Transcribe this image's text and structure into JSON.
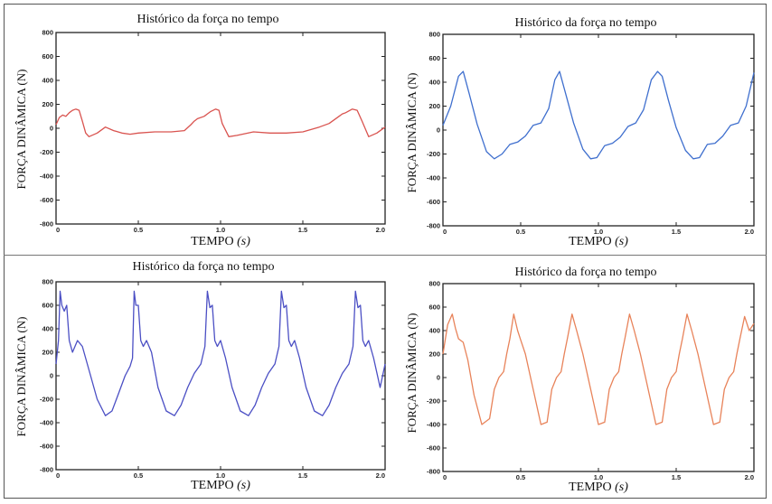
{
  "figure": {
    "panel_title": "Histórico da força no tempo",
    "xlabel_main": "TEMPO",
    "xlabel_unit": "(s)",
    "ylabel": "FORÇA DINÂMICA (N)"
  },
  "chart_data": [
    {
      "type": "line",
      "title": "Histórico da força no tempo",
      "xlabel": "TEMPO (s)",
      "ylabel": "FORÇA DINÂMICA (N)",
      "xlim": [
        0,
        2.0
      ],
      "ylim": [
        -800,
        800
      ],
      "x_ticks": [
        "0",
        "0.5",
        "1.0",
        "1.5",
        "2.0"
      ],
      "y_ticks": [
        "800",
        "600",
        "400",
        "200",
        "0",
        "-200",
        "-400",
        "-600",
        "-800"
      ],
      "grid": false,
      "color": "#d9534f",
      "series": [
        {
          "x": [
            0,
            0.02,
            0.04,
            0.06,
            0.08,
            0.1,
            0.12,
            0.14,
            0.16,
            0.18,
            0.2,
            0.25,
            0.3,
            0.35,
            0.4,
            0.45,
            0.5,
            0.6,
            0.7,
            0.78,
            0.82,
            0.84,
            0.86,
            0.9,
            0.94,
            0.97,
            0.99,
            1.01,
            1.05,
            1.1,
            1.2,
            1.3,
            1.4,
            1.5,
            1.6,
            1.66,
            1.72,
            1.74,
            1.76,
            1.8,
            1.83,
            1.86,
            1.9,
            1.95,
            2.0
          ],
          "y": [
            30,
            90,
            110,
            100,
            130,
            150,
            160,
            150,
            60,
            -40,
            -70,
            -40,
            10,
            -20,
            -40,
            -50,
            -40,
            -30,
            -30,
            -20,
            30,
            60,
            80,
            100,
            140,
            160,
            150,
            40,
            -70,
            -60,
            -30,
            -40,
            -40,
            -30,
            10,
            40,
            100,
            120,
            130,
            160,
            150,
            60,
            -70,
            -40,
            10
          ]
        }
      ]
    },
    {
      "type": "line",
      "title": "Histórico da força no tempo",
      "xlabel": "TEMPO (s)",
      "ylabel": "FORÇA DINÂMICA (N)",
      "xlim": [
        0,
        2.0
      ],
      "ylim": [
        -800,
        800
      ],
      "x_ticks": [
        "0",
        "0.5",
        "1.0",
        "1.5",
        "2.0"
      ],
      "y_ticks": [
        "800",
        "600",
        "400",
        "200",
        "0",
        "-200",
        "-400",
        "-600",
        "-800"
      ],
      "grid": false,
      "color": "#3f6fce",
      "series": [
        {
          "x": [
            0,
            0.05,
            0.1,
            0.13,
            0.17,
            0.22,
            0.28,
            0.33,
            0.38,
            0.43,
            0.48,
            0.53,
            0.58,
            0.63,
            0.68,
            0.72,
            0.75,
            0.79,
            0.84,
            0.9,
            0.95,
            0.99,
            1.04,
            1.09,
            1.14,
            1.19,
            1.24,
            1.29,
            1.34,
            1.38,
            1.41,
            1.45,
            1.5,
            1.56,
            1.61,
            1.65,
            1.7,
            1.75,
            1.8,
            1.85,
            1.9,
            1.95,
            2.0
          ],
          "y": [
            40,
            200,
            450,
            490,
            300,
            50,
            -180,
            -240,
            -200,
            -120,
            -100,
            -50,
            40,
            60,
            180,
            420,
            490,
            300,
            60,
            -160,
            -240,
            -230,
            -130,
            -110,
            -60,
            30,
            60,
            170,
            420,
            490,
            450,
            250,
            20,
            -170,
            -240,
            -230,
            -120,
            -110,
            -50,
            40,
            60,
            200,
            480
          ]
        }
      ]
    },
    {
      "type": "line",
      "title": "Histórico da força no tempo",
      "xlabel": "TEMPO (s)",
      "ylabel": "FORÇA DINÂMICA (N)",
      "xlim": [
        0,
        2.0
      ],
      "ylim": [
        -800,
        800
      ],
      "x_ticks": [
        "0",
        "0.5",
        "1.0",
        "1.5",
        "2.0"
      ],
      "y_ticks": [
        "800",
        "600",
        "400",
        "200",
        "0",
        "-200",
        "-400",
        "-600",
        "-800"
      ],
      "grid": false,
      "color": "#4b4fc4",
      "series": [
        {
          "x": [
            0,
            0.015,
            0.025,
            0.035,
            0.05,
            0.065,
            0.08,
            0.1,
            0.13,
            0.16,
            0.2,
            0.25,
            0.3,
            0.34,
            0.38,
            0.42,
            0.45,
            0.465,
            0.475,
            0.485,
            0.5,
            0.515,
            0.53,
            0.55,
            0.58,
            0.62,
            0.67,
            0.72,
            0.76,
            0.8,
            0.84,
            0.88,
            0.905,
            0.92,
            0.935,
            0.95,
            0.965,
            0.98,
            1.0,
            1.03,
            1.07,
            1.12,
            1.17,
            1.21,
            1.25,
            1.29,
            1.33,
            1.355,
            1.37,
            1.385,
            1.4,
            1.415,
            1.43,
            1.45,
            1.48,
            1.52,
            1.57,
            1.62,
            1.66,
            1.7,
            1.74,
            1.78,
            1.805,
            1.82,
            1.835,
            1.85,
            1.865,
            1.88,
            1.9,
            1.93,
            1.97,
            2.0
          ],
          "y": [
            100,
            300,
            720,
            600,
            550,
            600,
            300,
            200,
            300,
            250,
            50,
            -200,
            -340,
            -300,
            -150,
            0,
            80,
            150,
            720,
            600,
            600,
            300,
            250,
            300,
            200,
            -100,
            -300,
            -340,
            -250,
            -100,
            20,
            100,
            250,
            720,
            580,
            600,
            300,
            250,
            300,
            150,
            -100,
            -300,
            -340,
            -250,
            -100,
            20,
            100,
            250,
            720,
            580,
            600,
            300,
            250,
            300,
            150,
            -100,
            -300,
            -340,
            -250,
            -100,
            20,
            100,
            250,
            720,
            580,
            600,
            300,
            250,
            300,
            150,
            -100,
            100
          ]
        }
      ]
    },
    {
      "type": "line",
      "title": "Histórico da força no tempo",
      "xlabel": "TEMPO (s)",
      "ylabel": "FORÇA DINÂMICA (N)",
      "xlim": [
        0,
        2.0
      ],
      "ylim": [
        -800,
        800
      ],
      "x_ticks": [
        "0",
        "0.5",
        "1.0",
        "1.5",
        "2.0"
      ],
      "y_ticks": [
        "800",
        "600",
        "400",
        "200",
        "0",
        "-200",
        "-400",
        "-600",
        "-800"
      ],
      "grid": false,
      "color": "#e8835a",
      "series": [
        {
          "x": [
            0,
            0.03,
            0.06,
            0.08,
            0.1,
            0.13,
            0.16,
            0.2,
            0.25,
            0.3,
            0.33,
            0.36,
            0.39,
            0.41,
            0.43,
            0.455,
            0.48,
            0.5,
            0.53,
            0.58,
            0.63,
            0.67,
            0.7,
            0.73,
            0.76,
            0.78,
            0.8,
            0.83,
            0.86,
            0.9,
            0.95,
            1.0,
            1.04,
            1.07,
            1.1,
            1.13,
            1.15,
            1.17,
            1.2,
            1.23,
            1.27,
            1.32,
            1.37,
            1.41,
            1.44,
            1.47,
            1.5,
            1.52,
            1.54,
            1.57,
            1.6,
            1.64,
            1.69,
            1.74,
            1.78,
            1.81,
            1.84,
            1.87,
            1.89,
            1.91,
            1.94,
            1.97,
            2.0
          ],
          "y": [
            200,
            450,
            540,
            420,
            330,
            300,
            150,
            -150,
            -400,
            -350,
            -100,
            0,
            50,
            200,
            330,
            540,
            400,
            320,
            200,
            -100,
            -400,
            -380,
            -100,
            0,
            50,
            200,
            330,
            540,
            400,
            200,
            -100,
            -400,
            -380,
            -100,
            0,
            50,
            200,
            330,
            540,
            400,
            200,
            -100,
            -400,
            -380,
            -100,
            0,
            50,
            200,
            330,
            540,
            400,
            200,
            -100,
            -400,
            -380,
            -100,
            0,
            50,
            200,
            330,
            520,
            400,
            460
          ]
        }
      ]
    }
  ]
}
